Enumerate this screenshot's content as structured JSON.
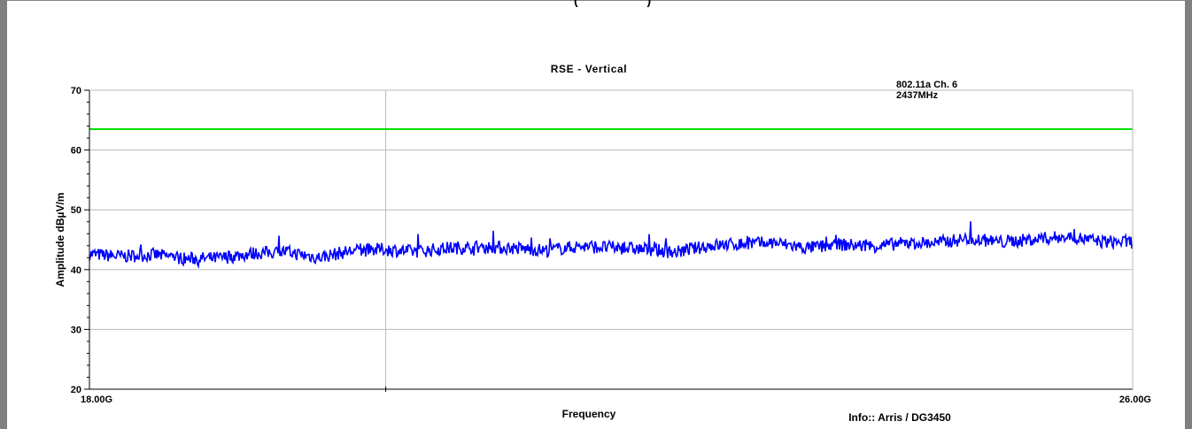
{
  "header": {
    "cropped_text": "(                    )"
  },
  "chart_data": {
    "type": "line",
    "title": "RSE - Vertical",
    "annotation": [
      "802.11a Ch. 6",
      "2437MHz"
    ],
    "xlabel": "Frequency",
    "ylabel": "Amplitude dBµV/m",
    "info": "Info:: Arris / DG3450",
    "xlim": [
      18.0,
      26.0
    ],
    "x_tick_labels": [
      "18.00G",
      "26.00G"
    ],
    "ylim": [
      20,
      70
    ],
    "y_ticks": [
      20,
      30,
      40,
      50,
      60,
      70
    ],
    "grid": true,
    "series": [
      {
        "kind": "limit",
        "color": "#00e000",
        "x": [
          18.0,
          26.0
        ],
        "y": [
          63.5,
          63.5
        ]
      },
      {
        "kind": "trace",
        "color": "#0000ff",
        "x": [
          18.0,
          18.25,
          18.5,
          18.75,
          19.0,
          19.25,
          19.5,
          19.75,
          20.0,
          20.25,
          20.5,
          20.75,
          21.0,
          21.25,
          21.5,
          21.75,
          22.0,
          22.25,
          22.5,
          22.75,
          23.0,
          23.25,
          23.5,
          23.75,
          24.0,
          24.25,
          24.5,
          24.75,
          25.0,
          25.25,
          25.5,
          25.75,
          26.0
        ],
        "y": [
          42.6,
          42.2,
          42.5,
          41.8,
          41.9,
          42.7,
          43.0,
          42.0,
          43.1,
          43.4,
          43.0,
          43.6,
          43.8,
          43.6,
          43.2,
          43.9,
          43.7,
          43.4,
          42.9,
          44.0,
          44.3,
          44.5,
          43.6,
          44.2,
          43.9,
          44.4,
          44.5,
          45.2,
          44.6,
          45.1,
          45.5,
          44.7,
          44.6
        ]
      }
    ]
  }
}
